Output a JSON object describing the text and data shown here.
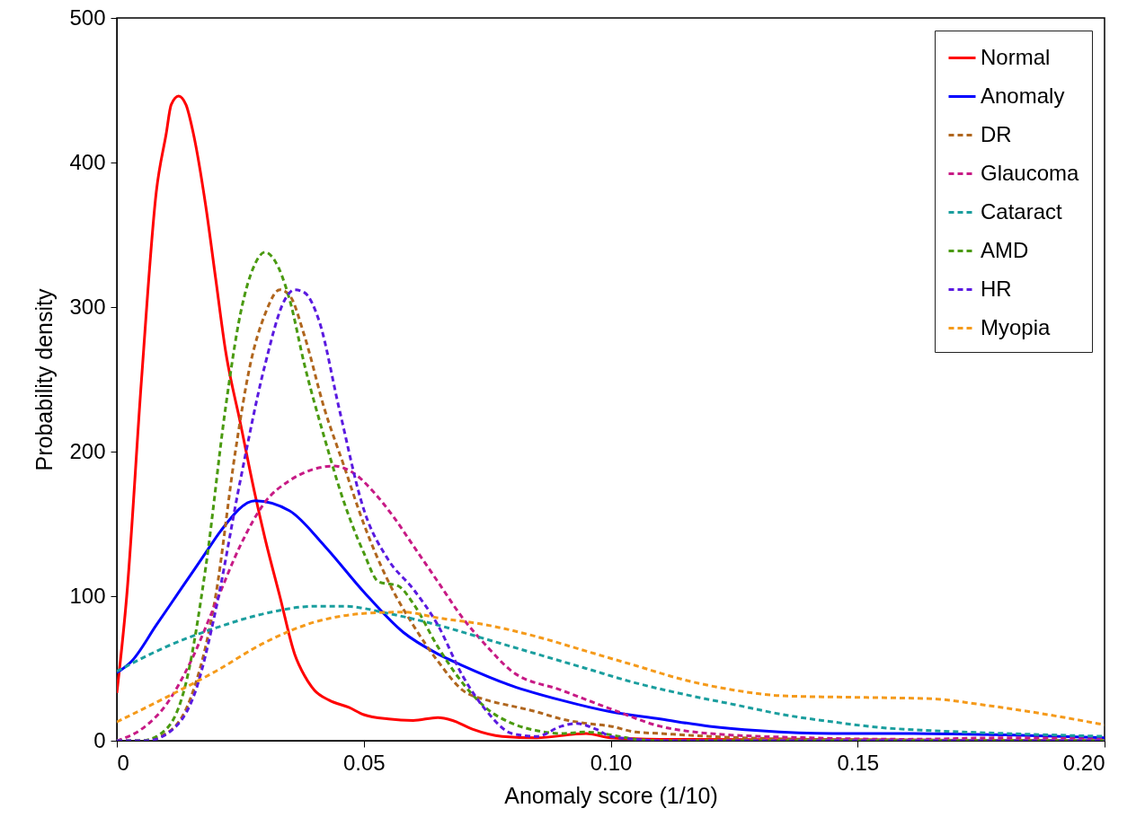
{
  "chart_data": {
    "type": "line",
    "xlabel": "Anomaly score (1/10)",
    "ylabel": "Probability density",
    "xlim": [
      0,
      0.2
    ],
    "ylim": [
      0,
      500
    ],
    "xticks": [
      {
        "value": 0,
        "label": "0"
      },
      0.05,
      {
        "value": 0.1,
        "label": "0.10"
      },
      0.15,
      {
        "value": 0.2,
        "label": "0.20"
      }
    ],
    "yticks": [
      0,
      100,
      200,
      300,
      400,
      500
    ],
    "grid": false,
    "legend": "top right",
    "marker": "none",
    "series": [
      {
        "name": "Normal",
        "color": "#ff0000",
        "line_style": "solid",
        "x": [
          0,
          0.002,
          0.005,
          0.008,
          0.01,
          0.011,
          0.0125,
          0.014,
          0.0155,
          0.018,
          0.02,
          0.022,
          0.025,
          0.028,
          0.03,
          0.033,
          0.036,
          0.038,
          0.04,
          0.043,
          0.047,
          0.05,
          0.055,
          0.06,
          0.065,
          0.068,
          0.072,
          0.078,
          0.085,
          0.095,
          0.1,
          0.11,
          0.2
        ],
        "values": [
          33,
          100,
          250,
          380,
          420,
          440,
          446,
          440,
          420,
          370,
          320,
          270,
          220,
          170,
          140,
          100,
          60,
          45,
          35,
          28,
          23,
          18,
          15,
          14,
          16,
          14,
          8,
          3,
          2,
          5,
          2,
          1,
          0
        ]
      },
      {
        "name": "Anomaly",
        "color": "#0000ff",
        "line_style": "solid",
        "x": [
          0,
          0.003,
          0.008,
          0.013,
          0.018,
          0.021,
          0.028,
          0.035,
          0.042,
          0.05,
          0.058,
          0.065,
          0.07,
          0.08,
          0.09,
          0.1,
          0.11,
          0.12,
          0.13,
          0.145,
          0.16,
          0.18,
          0.2
        ],
        "values": [
          47,
          55,
          80,
          105,
          130,
          145,
          166,
          159,
          135,
          103,
          75,
          60,
          52,
          38,
          28,
          20,
          15,
          10,
          7,
          5,
          5,
          4,
          2
        ]
      },
      {
        "name": "DR",
        "color": "#b0661e",
        "line_style": "dashed",
        "x": [
          0,
          0.005,
          0.01,
          0.015,
          0.02,
          0.024,
          0.027,
          0.03,
          0.033,
          0.035,
          0.038,
          0.042,
          0.046,
          0.05,
          0.055,
          0.06,
          0.065,
          0.07,
          0.075,
          0.08,
          0.085,
          0.09,
          0.095,
          0.1,
          0.105,
          0.11,
          0.12,
          0.14,
          0.2
        ],
        "values": [
          0,
          0,
          5,
          30,
          100,
          200,
          260,
          295,
          312,
          308,
          280,
          230,
          190,
          150,
          110,
          80,
          55,
          35,
          28,
          24,
          20,
          15,
          12,
          10,
          6,
          5,
          3,
          1,
          0
        ]
      },
      {
        "name": "Glaucoma",
        "color": "#c71a85",
        "line_style": "dashed",
        "x": [
          0,
          0.005,
          0.01,
          0.015,
          0.02,
          0.025,
          0.03,
          0.035,
          0.04,
          0.044,
          0.048,
          0.052,
          0.056,
          0.06,
          0.065,
          0.07,
          0.075,
          0.08,
          0.09,
          0.1,
          0.11,
          0.12,
          0.14,
          0.16,
          0.18,
          0.2
        ],
        "values": [
          0,
          8,
          25,
          55,
          95,
          135,
          165,
          180,
          188,
          190,
          185,
          172,
          155,
          135,
          110,
          85,
          65,
          48,
          35,
          22,
          10,
          5,
          2,
          1,
          2,
          1
        ]
      },
      {
        "name": "Cataract",
        "color": "#1a9e9e",
        "line_style": "dashed",
        "x": [
          0,
          0.01,
          0.02,
          0.03,
          0.04,
          0.046,
          0.055,
          0.065,
          0.075,
          0.085,
          0.095,
          0.105,
          0.115,
          0.125,
          0.135,
          0.145,
          0.155,
          0.165,
          0.18,
          0.2
        ],
        "values": [
          48,
          65,
          78,
          88,
          93,
          93,
          88,
          80,
          70,
          60,
          50,
          40,
          32,
          25,
          18,
          13,
          9,
          7,
          5,
          3
        ]
      },
      {
        "name": "AMD",
        "color": "#4a9a10",
        "line_style": "dashed",
        "x": [
          0,
          0.005,
          0.01,
          0.014,
          0.018,
          0.022,
          0.025,
          0.028,
          0.03,
          0.032,
          0.035,
          0.038,
          0.042,
          0.046,
          0.05,
          0.053,
          0.057,
          0.06,
          0.065,
          0.07,
          0.075,
          0.08,
          0.085,
          0.09,
          0.095,
          0.1,
          0.105,
          0.11,
          0.2
        ],
        "values": [
          0,
          0,
          8,
          40,
          120,
          230,
          295,
          330,
          338,
          332,
          305,
          260,
          210,
          165,
          130,
          110,
          107,
          95,
          65,
          40,
          22,
          12,
          7,
          5,
          6,
          4,
          1,
          0,
          0
        ]
      },
      {
        "name": "HR",
        "color": "#5a1ae0",
        "line_style": "dashed",
        "x": [
          0,
          0.006,
          0.012,
          0.016,
          0.02,
          0.025,
          0.03,
          0.034,
          0.036,
          0.038,
          0.041,
          0.045,
          0.05,
          0.055,
          0.06,
          0.065,
          0.07,
          0.075,
          0.08,
          0.085,
          0.09,
          0.093,
          0.097,
          0.1,
          0.105,
          0.11,
          0.2
        ],
        "values": [
          0,
          0,
          10,
          35,
          90,
          180,
          260,
          305,
          312,
          310,
          290,
          230,
          160,
          125,
          105,
          80,
          45,
          20,
          5,
          3,
          10,
          12,
          8,
          3,
          1,
          0,
          0
        ]
      },
      {
        "name": "Myopia",
        "color": "#f59a1a",
        "line_style": "dashed",
        "x": [
          0,
          0.01,
          0.02,
          0.03,
          0.04,
          0.05,
          0.058,
          0.065,
          0.075,
          0.085,
          0.095,
          0.105,
          0.115,
          0.125,
          0.135,
          0.15,
          0.165,
          0.175,
          0.185,
          0.2
        ],
        "values": [
          13,
          30,
          48,
          68,
          82,
          88,
          89,
          85,
          80,
          72,
          62,
          52,
          42,
          35,
          31,
          30,
          29,
          25,
          20,
          11
        ]
      }
    ]
  }
}
